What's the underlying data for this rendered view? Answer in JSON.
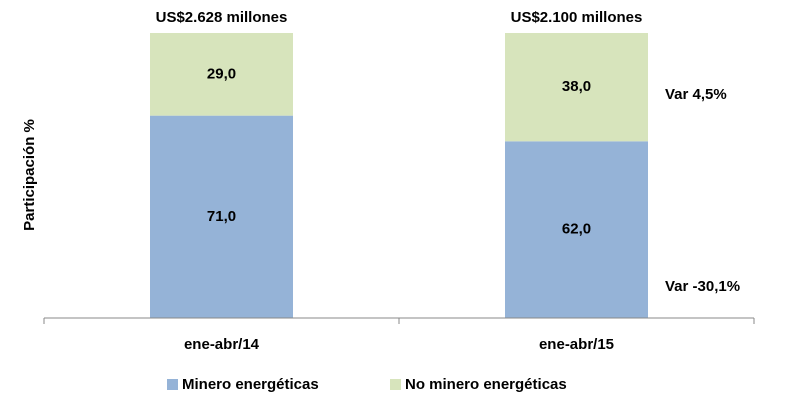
{
  "chart_data": {
    "type": "stacked_bar",
    "y_label": "Participación %",
    "categories": [
      "ene-abr/14",
      "ene-abr/15"
    ],
    "series": [
      {
        "name": "Minero energéticas",
        "color": "#95b3d7",
        "values": [
          71.0,
          62.0
        ],
        "value_labels": [
          "71,0",
          "62,0"
        ]
      },
      {
        "name": "No minero energéticas",
        "color": "#d7e4bc",
        "values": [
          29.0,
          38.0
        ],
        "value_labels": [
          "29,0",
          "38,0"
        ]
      }
    ],
    "bar_totals": [
      "US$2.628 millones",
      "US$2.100 millones"
    ],
    "annotations": [
      "Var 4,5%",
      "Var -30,1%"
    ],
    "ylim": [
      0,
      100
    ],
    "legend": "bottom"
  }
}
